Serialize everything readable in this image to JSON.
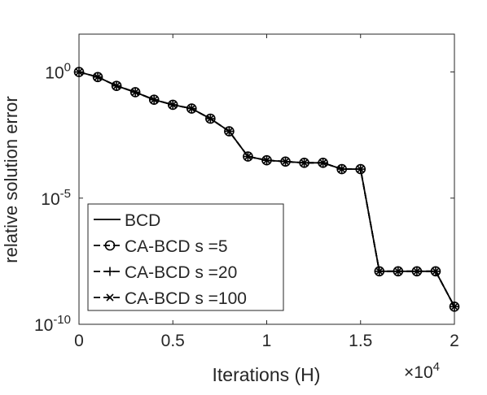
{
  "chart_data": {
    "type": "line",
    "ylabel": "relative solution error",
    "xlabel": "Iterations (H)",
    "x_scale_note": {
      "base": "×10",
      "exponent": "4"
    },
    "xlim": [
      0,
      2
    ],
    "ylim_log10": [
      -10,
      1.5
    ],
    "y_scale": "log",
    "grid": false,
    "legend_placement": "bottom-left",
    "x_ticks": [
      {
        "value": 0,
        "label": "0"
      },
      {
        "value": 0.5,
        "label": "0.5"
      },
      {
        "value": 1,
        "label": "1"
      },
      {
        "value": 1.5,
        "label": "1.5"
      },
      {
        "value": 2,
        "label": "2"
      }
    ],
    "y_ticks": [
      {
        "exp": 0,
        "base": "10",
        "sup": "0"
      },
      {
        "exp": -5,
        "base": "10",
        "sup": "-5"
      },
      {
        "exp": -10,
        "base": "10",
        "sup": "-10"
      }
    ],
    "x": [
      0,
      0.1,
      0.2,
      0.3,
      0.4,
      0.5,
      0.6,
      0.7,
      0.8,
      0.9,
      1.0,
      1.1,
      1.2,
      1.3,
      1.4,
      1.5,
      1.6,
      1.7,
      1.8,
      1.9,
      2.0
    ],
    "series": [
      {
        "name": "BCD",
        "marker": "none",
        "log10_y": [
          0,
          -0.2,
          -0.55,
          -0.8,
          -1.1,
          -1.3,
          -1.45,
          -1.85,
          -2.35,
          -3.35,
          -3.5,
          -3.55,
          -3.6,
          -3.6,
          -3.85,
          -3.85,
          -7.9,
          -7.9,
          -7.9,
          -7.9,
          -9.3
        ]
      },
      {
        "name": "CA-BCD s =5",
        "marker": "circle",
        "log10_y": [
          0,
          -0.2,
          -0.55,
          -0.8,
          -1.1,
          -1.3,
          -1.45,
          -1.85,
          -2.35,
          -3.35,
          -3.5,
          -3.55,
          -3.6,
          -3.6,
          -3.85,
          -3.85,
          -7.9,
          -7.9,
          -7.9,
          -7.9,
          -9.3
        ]
      },
      {
        "name": "CA-BCD s =20",
        "marker": "plus",
        "log10_y": [
          0,
          -0.2,
          -0.55,
          -0.8,
          -1.1,
          -1.3,
          -1.45,
          -1.85,
          -2.35,
          -3.35,
          -3.5,
          -3.55,
          -3.6,
          -3.6,
          -3.85,
          -3.85,
          -7.9,
          -7.9,
          -7.9,
          -7.9,
          -9.3
        ]
      },
      {
        "name": "CA-BCD s =100",
        "marker": "x",
        "log10_y": [
          0,
          -0.2,
          -0.55,
          -0.8,
          -1.1,
          -1.3,
          -1.45,
          -1.85,
          -2.35,
          -3.35,
          -3.5,
          -3.55,
          -3.6,
          -3.6,
          -3.85,
          -3.85,
          -7.9,
          -7.9,
          -7.9,
          -7.9,
          -9.3
        ]
      }
    ],
    "colors": {
      "line": "#000000",
      "axes": "#262626",
      "legend_border": "#262626"
    }
  }
}
